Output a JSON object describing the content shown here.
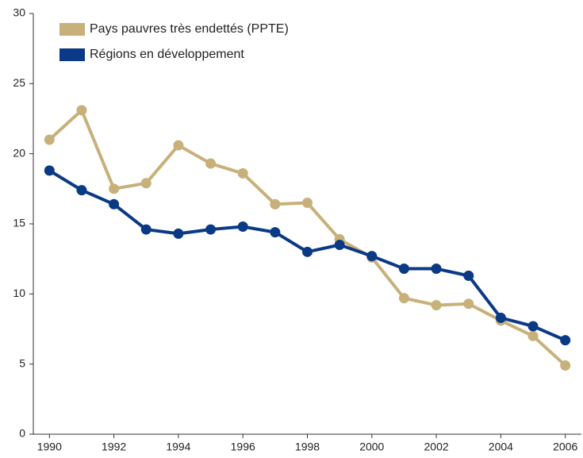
{
  "chart_data": {
    "type": "line",
    "x": [
      1990,
      1991,
      1992,
      1993,
      1994,
      1995,
      1996,
      1997,
      1998,
      1999,
      2000,
      2001,
      2002,
      2003,
      2004,
      2005,
      2006
    ],
    "series": [
      {
        "name": "Pays pauvres très endettés (PPTE)",
        "color": "#c8b07a",
        "values": [
          21.0,
          23.1,
          17.5,
          17.9,
          20.6,
          19.3,
          18.6,
          16.4,
          16.5,
          13.9,
          12.6,
          9.7,
          9.2,
          9.3,
          8.1,
          7.0,
          4.9
        ]
      },
      {
        "name": "Régions en développement",
        "color": "#0a3a85",
        "values": [
          18.8,
          17.4,
          16.4,
          14.6,
          14.3,
          14.6,
          14.8,
          14.4,
          13.0,
          13.5,
          12.7,
          11.8,
          11.8,
          11.3,
          8.3,
          7.7,
          6.7
        ]
      }
    ],
    "xlim": [
      1989.5,
      2006.5
    ],
    "xticks": [
      1990,
      1992,
      1994,
      1996,
      1998,
      2000,
      2002,
      2004,
      2006
    ],
    "ylim": [
      0,
      30
    ],
    "yticks": [
      0,
      5,
      10,
      15,
      20,
      25,
      30
    ],
    "legend": "top-left"
  }
}
